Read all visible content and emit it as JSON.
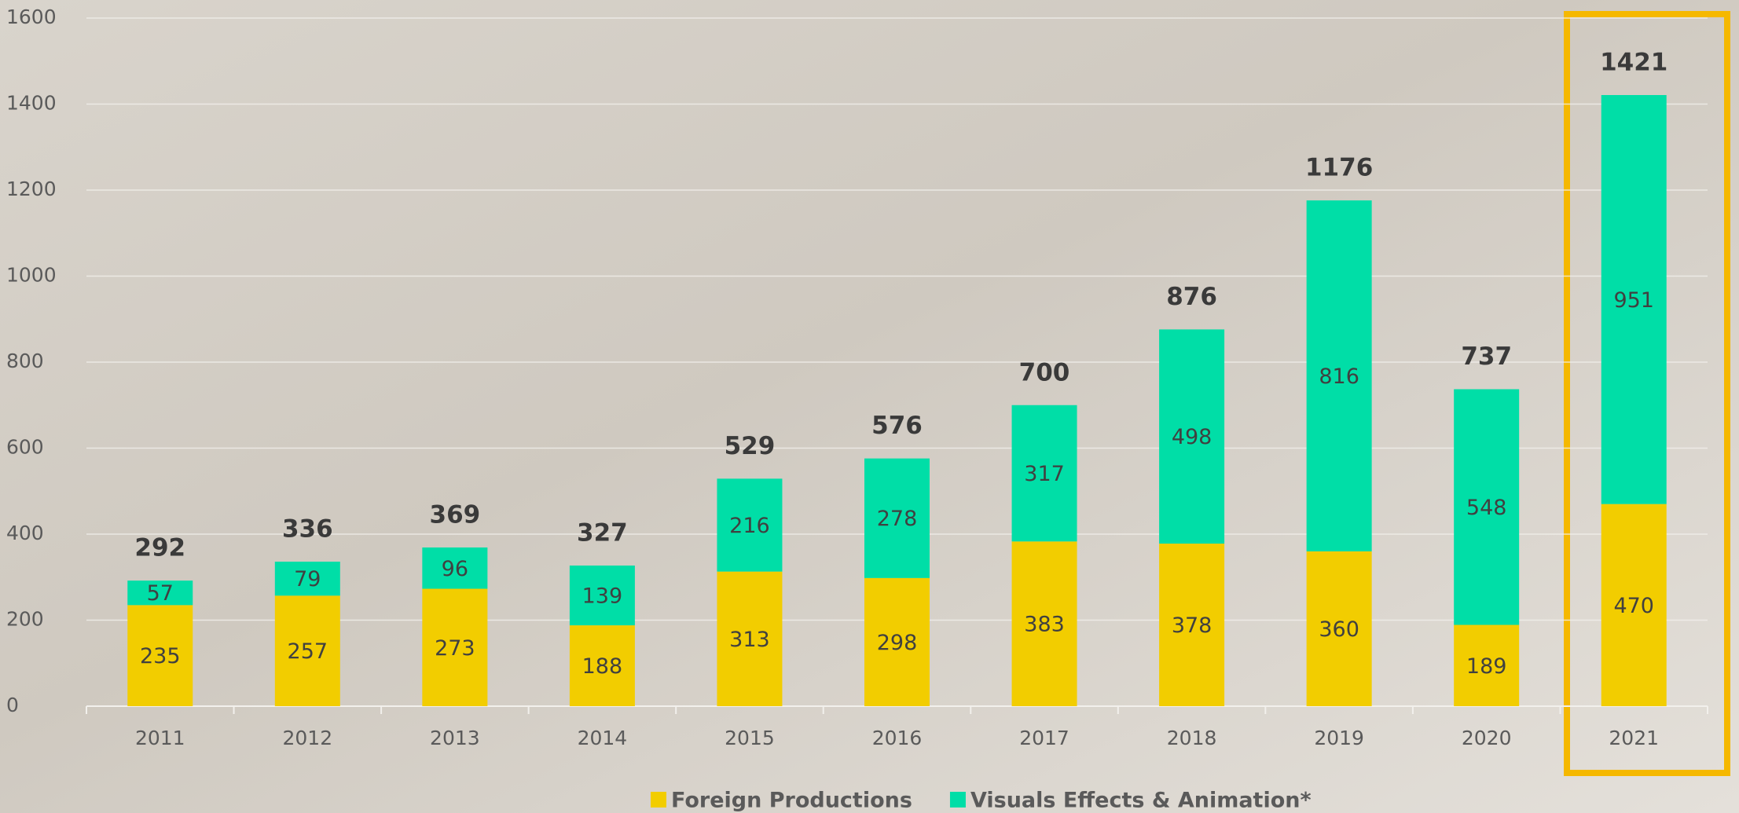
{
  "chart_data": {
    "type": "stacked_bar",
    "categories": [
      "2011",
      "2012",
      "2013",
      "2014",
      "2015",
      "2016",
      "2017",
      "2018",
      "2019",
      "2020",
      "2021"
    ],
    "series": [
      {
        "name": "Foreign Productions",
        "color": "#f2cd00",
        "values": [
          235,
          257,
          273,
          188,
          313,
          298,
          383,
          378,
          360,
          189,
          470
        ]
      },
      {
        "name": "Visuals Effects & Animation*",
        "color": "#00dea7",
        "values": [
          57,
          79,
          96,
          139,
          216,
          278,
          317,
          498,
          816,
          548,
          951
        ]
      }
    ],
    "totals": [
      292,
      336,
      369,
      327,
      529,
      576,
      700,
      876,
      1176,
      737,
      1421
    ],
    "ylim": [
      0,
      1600
    ],
    "yticks": [
      0,
      200,
      400,
      600,
      800,
      1000,
      1200,
      1400,
      1600
    ],
    "grid": true
  }
}
